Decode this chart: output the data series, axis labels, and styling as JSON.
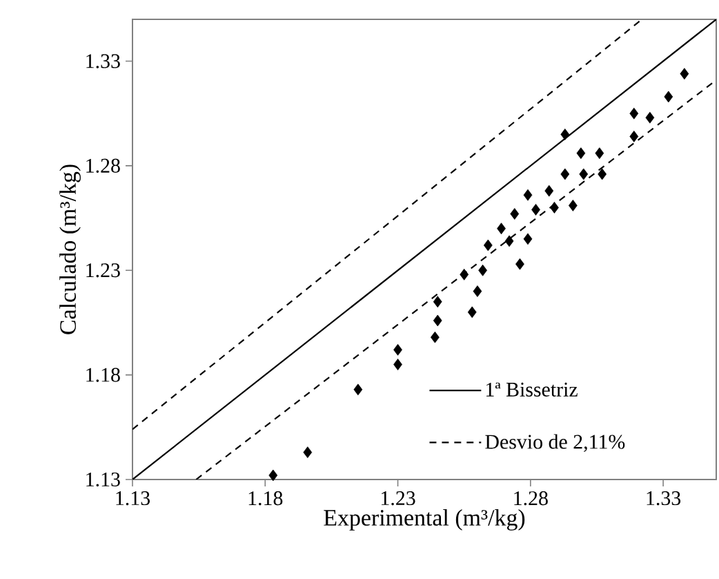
{
  "chart_data": {
    "type": "scatter",
    "xlabel": "Experimental (m³/kg)",
    "ylabel": "Calculado (m³/kg)",
    "xlim": [
      1.13,
      1.35
    ],
    "ylim": [
      1.13,
      1.35
    ],
    "xticks": [
      1.13,
      1.18,
      1.23,
      1.28,
      1.33
    ],
    "yticks": [
      1.13,
      1.18,
      1.23,
      1.28,
      1.33
    ],
    "grid": false,
    "legend": "bottom right",
    "series": [
      {
        "marker": "diamond",
        "color": "#000000",
        "x": [
          1.338,
          1.332,
          1.319,
          1.325,
          1.319,
          1.293,
          1.299,
          1.306,
          1.293,
          1.3,
          1.307,
          1.279,
          1.287,
          1.282,
          1.289,
          1.296,
          1.274,
          1.269,
          1.272,
          1.279,
          1.264,
          1.276,
          1.255,
          1.262,
          1.245,
          1.26,
          1.245,
          1.258,
          1.244,
          1.23,
          1.23,
          1.215,
          1.196,
          1.183
        ],
        "values": [
          1.324,
          1.313,
          1.305,
          1.303,
          1.294,
          1.295,
          1.286,
          1.286,
          1.276,
          1.276,
          1.276,
          1.266,
          1.268,
          1.259,
          1.26,
          1.261,
          1.257,
          1.25,
          1.244,
          1.245,
          1.242,
          1.233,
          1.228,
          1.23,
          1.215,
          1.22,
          1.206,
          1.21,
          1.198,
          1.192,
          1.185,
          1.173,
          1.143,
          1.132
        ]
      },
      {
        "type": "line",
        "name": "1ª Bissetriz",
        "color": "#000000",
        "marker": "none",
        "line_style": "solid",
        "x": [
          1.13,
          1.35
        ],
        "values": [
          1.13,
          1.35
        ]
      },
      {
        "type": "line",
        "name": "Desvio de 2,11%",
        "color": "#000000",
        "marker": "none",
        "line_style": "dashed",
        "x": [
          1.13,
          1.322
        ],
        "values": [
          1.154,
          1.35
        ]
      },
      {
        "type": "line",
        "color": "#000000",
        "marker": "none",
        "line_style": "dashed",
        "x": [
          1.154,
          1.35
        ],
        "values": [
          1.13,
          1.321
        ]
      }
    ]
  }
}
